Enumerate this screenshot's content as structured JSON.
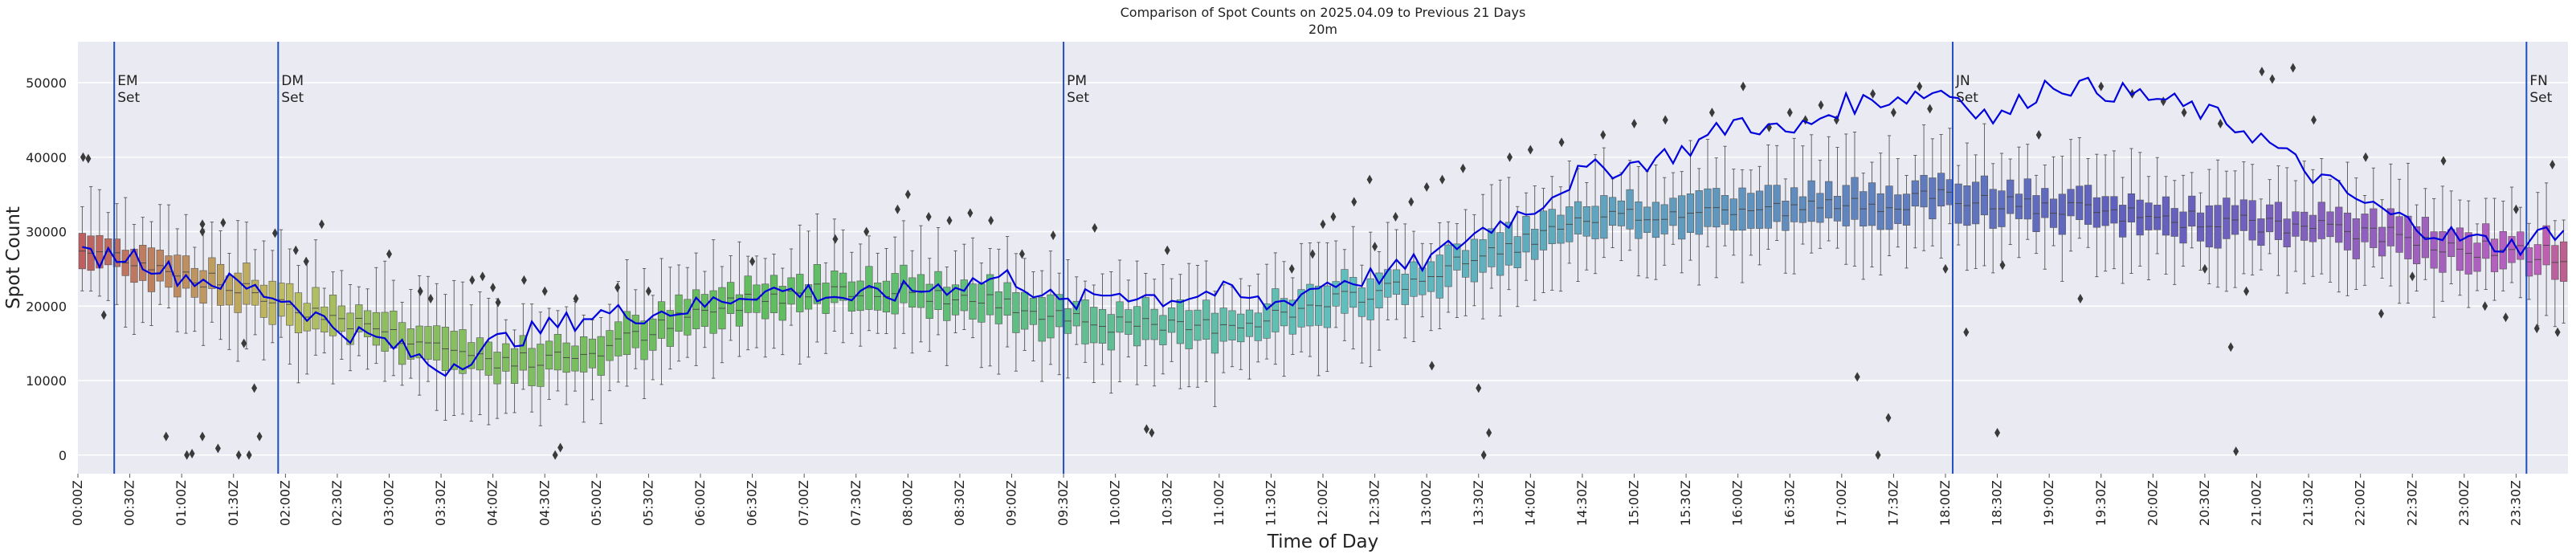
{
  "chart_data": {
    "type": "box",
    "title": "Comparison of Spot Counts on 2025.04.09 to Previous 21 Days",
    "subtitle": "20m",
    "xlabel": "Time of Day",
    "ylabel": "Spot Count",
    "ylim": [
      -2500,
      55500
    ],
    "yticks": [
      0,
      10000,
      20000,
      30000,
      40000,
      50000
    ],
    "grid": true,
    "slots_per_hour": 12,
    "x_tick_labels": [
      "00:00Z",
      "00:30Z",
      "01:00Z",
      "01:30Z",
      "02:00Z",
      "02:30Z",
      "03:00Z",
      "03:30Z",
      "04:00Z",
      "04:30Z",
      "05:00Z",
      "05:30Z",
      "06:00Z",
      "06:30Z",
      "07:00Z",
      "07:30Z",
      "08:00Z",
      "08:30Z",
      "09:00Z",
      "09:30Z",
      "10:00Z",
      "10:30Z",
      "11:00Z",
      "11:30Z",
      "12:00Z",
      "12:30Z",
      "13:00Z",
      "13:30Z",
      "14:00Z",
      "14:30Z",
      "15:00Z",
      "15:30Z",
      "16:00Z",
      "16:30Z",
      "17:00Z",
      "17:30Z",
      "18:00Z",
      "18:30Z",
      "19:00Z",
      "19:30Z",
      "20:00Z",
      "20:30Z",
      "21:00Z",
      "21:30Z",
      "22:00Z",
      "22:30Z",
      "23:00Z",
      "23:30Z"
    ],
    "median_profile_hours": [
      0,
      0.5,
      1,
      1.5,
      2,
      2.5,
      3,
      3.5,
      4,
      4.5,
      5,
      5.5,
      6,
      6.5,
      7,
      7.5,
      8,
      8.5,
      9,
      9.5,
      10,
      10.5,
      11,
      11.5,
      12,
      12.5,
      13,
      13.5,
      14,
      14.5,
      15,
      15.5,
      16,
      16.5,
      17,
      17.5,
      18,
      18.5,
      19,
      19.5,
      20,
      20.5,
      21,
      21.5,
      22,
      22.5,
      23,
      23.5,
      24
    ],
    "median_profile": [
      27500,
      26500,
      24500,
      22500,
      20500,
      18500,
      16500,
      14500,
      12800,
      12500,
      14000,
      16500,
      19000,
      21000,
      22000,
      22500,
      22000,
      21000,
      20000,
      19000,
      17500,
      17000,
      17500,
      18500,
      20000,
      22000,
      24000,
      26500,
      29000,
      31000,
      32000,
      32500,
      33000,
      33000,
      33500,
      34000,
      34500,
      34000,
      33000,
      32500,
      32000,
      31500,
      31000,
      30500,
      30000,
      29000,
      28000,
      27000,
      27000
    ],
    "box_iqr_halfwidth": 2200,
    "whisker_extent": 6000,
    "series": [
      {
        "name": "2025.04.09",
        "color": "#0000dd",
        "hours": [
          0,
          0.5,
          1,
          1.5,
          2,
          2.5,
          3,
          3.5,
          4,
          4.5,
          5,
          5.5,
          6,
          6.5,
          7,
          7.5,
          8,
          8.5,
          9,
          9.5,
          10,
          10.5,
          11,
          11.5,
          12,
          12.5,
          13,
          13.5,
          14,
          14.5,
          15,
          15.5,
          16,
          16.5,
          17,
          17.5,
          18,
          18.5,
          19,
          19.5,
          20,
          20.5,
          21,
          21.5,
          22,
          22.5,
          23,
          23.5,
          24
        ],
        "values": [
          26500,
          27000,
          24000,
          23000,
          21000,
          17000,
          15000,
          11500,
          15000,
          17000,
          19000,
          19000,
          20000,
          22000,
          22000,
          21000,
          22000,
          23000,
          24000,
          20000,
          22000,
          21000,
          22000,
          20000,
          23000,
          24000,
          26000,
          30000,
          33000,
          38000,
          39000,
          41000,
          45000,
          43000,
          47000,
          48000,
          49000,
          45000,
          50000,
          49000,
          48000,
          46000,
          43000,
          38000,
          34000,
          31000,
          29000,
          28000,
          31000
        ]
      }
    ],
    "vlines": [
      {
        "label": "EM\nSet",
        "hour": 0.35,
        "color": "#1f4fbf"
      },
      {
        "label": "DM\nSet",
        "hour": 1.93,
        "color": "#1f4fbf"
      },
      {
        "label": "PM\nSet",
        "hour": 9.5,
        "color": "#1f4fbf"
      },
      {
        "label": "JN\nSet",
        "hour": 18.07,
        "color": "#1f4fbf"
      },
      {
        "label": "FN\nSet",
        "hour": 23.6,
        "color": "#1f4fbf"
      }
    ],
    "outliers": [
      {
        "hour": 0.05,
        "value": 40000
      },
      {
        "hour": 0.1,
        "value": 39800
      },
      {
        "hour": 0.25,
        "value": 18800
      },
      {
        "hour": 0.85,
        "value": 2500
      },
      {
        "hour": 1.05,
        "value": 0
      },
      {
        "hour": 1.1,
        "value": 200
      },
      {
        "hour": 1.2,
        "value": 2500
      },
      {
        "hour": 1.2,
        "value": 31000
      },
      {
        "hour": 1.2,
        "value": 30000
      },
      {
        "hour": 1.35,
        "value": 900
      },
      {
        "hour": 1.4,
        "value": 31200
      },
      {
        "hour": 1.55,
        "value": 0
      },
      {
        "hour": 1.6,
        "value": 15000
      },
      {
        "hour": 1.65,
        "value": 0
      },
      {
        "hour": 1.7,
        "value": 9000
      },
      {
        "hour": 1.75,
        "value": 2500
      },
      {
        "hour": 1.9,
        "value": 29800
      },
      {
        "hour": 2.1,
        "value": 27500
      },
      {
        "hour": 2.2,
        "value": 26000
      },
      {
        "hour": 2.35,
        "value": 31000
      },
      {
        "hour": 3.0,
        "value": 27000
      },
      {
        "hour": 3.3,
        "value": 22000
      },
      {
        "hour": 3.4,
        "value": 21000
      },
      {
        "hour": 3.8,
        "value": 23500
      },
      {
        "hour": 3.9,
        "value": 24000
      },
      {
        "hour": 4.0,
        "value": 22500
      },
      {
        "hour": 4.05,
        "value": 20500
      },
      {
        "hour": 4.3,
        "value": 23500
      },
      {
        "hour": 4.5,
        "value": 22000
      },
      {
        "hour": 4.6,
        "value": 0
      },
      {
        "hour": 4.65,
        "value": 1000
      },
      {
        "hour": 4.8,
        "value": 21000
      },
      {
        "hour": 5.2,
        "value": 22500
      },
      {
        "hour": 5.5,
        "value": 22000
      },
      {
        "hour": 6.5,
        "value": 26000
      },
      {
        "hour": 7.3,
        "value": 29000
      },
      {
        "hour": 7.6,
        "value": 30000
      },
      {
        "hour": 7.9,
        "value": 33000
      },
      {
        "hour": 8.0,
        "value": 35000
      },
      {
        "hour": 8.2,
        "value": 32000
      },
      {
        "hour": 8.4,
        "value": 31500
      },
      {
        "hour": 8.6,
        "value": 32500
      },
      {
        "hour": 8.8,
        "value": 31500
      },
      {
        "hour": 9.1,
        "value": 27000
      },
      {
        "hour": 9.4,
        "value": 29500
      },
      {
        "hour": 9.8,
        "value": 30500
      },
      {
        "hour": 10.3,
        "value": 3500
      },
      {
        "hour": 10.35,
        "value": 3000
      },
      {
        "hour": 10.5,
        "value": 27500
      },
      {
        "hour": 11.7,
        "value": 25000
      },
      {
        "hour": 11.9,
        "value": 27000
      },
      {
        "hour": 12.0,
        "value": 31000
      },
      {
        "hour": 12.1,
        "value": 32000
      },
      {
        "hour": 12.3,
        "value": 34000
      },
      {
        "hour": 12.45,
        "value": 37000
      },
      {
        "hour": 12.5,
        "value": 28000
      },
      {
        "hour": 12.7,
        "value": 32000
      },
      {
        "hour": 12.85,
        "value": 34000
      },
      {
        "hour": 13.0,
        "value": 36000
      },
      {
        "hour": 13.05,
        "value": 12000
      },
      {
        "hour": 13.15,
        "value": 37000
      },
      {
        "hour": 13.35,
        "value": 38500
      },
      {
        "hour": 13.5,
        "value": 9000
      },
      {
        "hour": 13.55,
        "value": 0
      },
      {
        "hour": 13.6,
        "value": 3000
      },
      {
        "hour": 13.8,
        "value": 40000
      },
      {
        "hour": 14.0,
        "value": 41000
      },
      {
        "hour": 14.3,
        "value": 42000
      },
      {
        "hour": 14.7,
        "value": 43000
      },
      {
        "hour": 15.0,
        "value": 44500
      },
      {
        "hour": 15.3,
        "value": 45000
      },
      {
        "hour": 15.75,
        "value": 46000
      },
      {
        "hour": 16.05,
        "value": 49500
      },
      {
        "hour": 16.3,
        "value": 44000
      },
      {
        "hour": 16.5,
        "value": 46000
      },
      {
        "hour": 16.65,
        "value": 45000
      },
      {
        "hour": 16.8,
        "value": 47000
      },
      {
        "hour": 16.95,
        "value": 45000
      },
      {
        "hour": 17.15,
        "value": 10500
      },
      {
        "hour": 17.3,
        "value": 48500
      },
      {
        "hour": 17.35,
        "value": 0
      },
      {
        "hour": 17.45,
        "value": 5000
      },
      {
        "hour": 17.5,
        "value": 46000
      },
      {
        "hour": 17.75,
        "value": 49500
      },
      {
        "hour": 17.85,
        "value": 46500
      },
      {
        "hour": 18.0,
        "value": 25000
      },
      {
        "hour": 18.2,
        "value": 16500
      },
      {
        "hour": 18.5,
        "value": 3000
      },
      {
        "hour": 18.55,
        "value": 25500
      },
      {
        "hour": 18.9,
        "value": 43000
      },
      {
        "hour": 19.3,
        "value": 21000
      },
      {
        "hour": 19.5,
        "value": 49500
      },
      {
        "hour": 19.8,
        "value": 48500
      },
      {
        "hour": 20.1,
        "value": 47500
      },
      {
        "hour": 20.3,
        "value": 46000
      },
      {
        "hour": 20.5,
        "value": 25000
      },
      {
        "hour": 20.65,
        "value": 44500
      },
      {
        "hour": 20.75,
        "value": 14500
      },
      {
        "hour": 20.8,
        "value": 500
      },
      {
        "hour": 20.9,
        "value": 22000
      },
      {
        "hour": 21.05,
        "value": 51500
      },
      {
        "hour": 21.15,
        "value": 50500
      },
      {
        "hour": 21.35,
        "value": 52000
      },
      {
        "hour": 21.55,
        "value": 45000
      },
      {
        "hour": 22.05,
        "value": 40000
      },
      {
        "hour": 22.2,
        "value": 19000
      },
      {
        "hour": 22.5,
        "value": 24000
      },
      {
        "hour": 22.8,
        "value": 39500
      },
      {
        "hour": 23.2,
        "value": 20000
      },
      {
        "hour": 23.4,
        "value": 18500
      },
      {
        "hour": 23.5,
        "value": 33000
      },
      {
        "hour": 23.7,
        "value": 17000
      },
      {
        "hour": 23.85,
        "value": 39000
      },
      {
        "hour": 23.9,
        "value": 16500
      }
    ]
  }
}
